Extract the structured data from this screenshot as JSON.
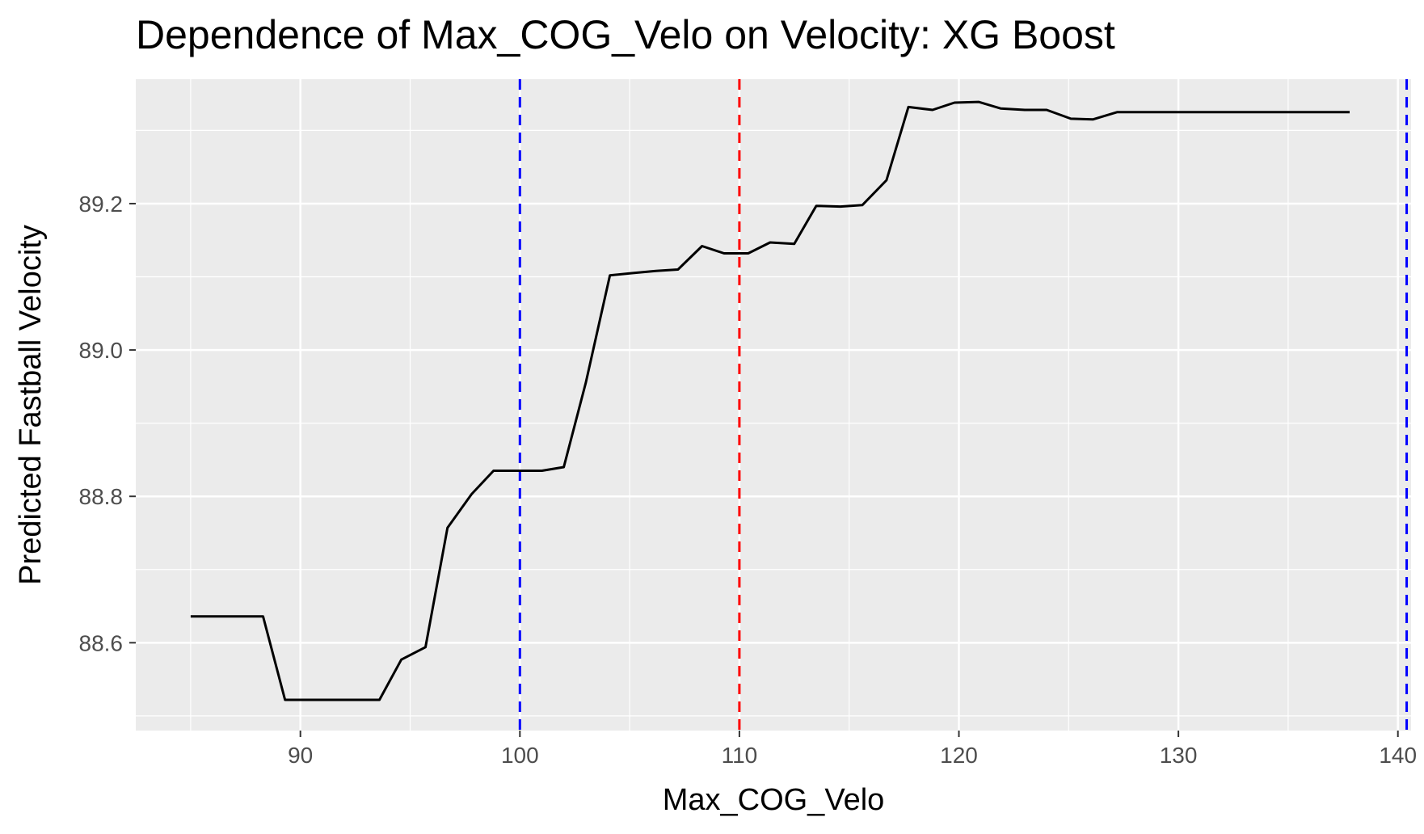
{
  "chart_data": {
    "type": "line",
    "title": "Dependence of Max_COG_Velo on Velocity: XG Boost",
    "xlabel": "Max_COG_Velo",
    "ylabel": "Predicted Fastball Velocity",
    "xlim": [
      82.5,
      140.6
    ],
    "ylim": [
      88.48,
      89.37
    ],
    "x_ticks": [
      90,
      100,
      110,
      120,
      130,
      140
    ],
    "x_tick_labels": [
      "90",
      "100",
      "110",
      "120",
      "130",
      "140"
    ],
    "y_ticks": [
      88.6,
      88.8,
      89.0,
      89.2
    ],
    "y_tick_labels": [
      "88.6",
      "88.8",
      "89.0",
      "89.2"
    ],
    "grid": true,
    "background": "#ebebeb",
    "series": [
      {
        "color": "#000000",
        "x": [
          85.0,
          88.3,
          89.3,
          93.6,
          94.6,
          95.7,
          96.7,
          97.8,
          98.8,
          101.0,
          102.0,
          103.0,
          104.1,
          105.1,
          106.2,
          107.2,
          108.3,
          109.3,
          110.4,
          111.4,
          112.5,
          113.5,
          114.6,
          115.6,
          116.7,
          117.7,
          118.8,
          119.8,
          120.9,
          121.9,
          123.0,
          124.0,
          125.1,
          126.1,
          127.2,
          137.8
        ],
        "y": [
          88.636,
          88.636,
          88.522,
          88.522,
          88.577,
          88.594,
          88.757,
          88.803,
          88.835,
          88.835,
          88.84,
          88.955,
          89.102,
          89.105,
          89.108,
          89.11,
          89.142,
          89.132,
          89.132,
          89.147,
          89.145,
          89.197,
          89.196,
          89.198,
          89.232,
          89.332,
          89.328,
          89.338,
          89.339,
          89.33,
          89.328,
          89.328,
          89.316,
          89.315,
          89.325,
          89.325
        ]
      }
    ],
    "vlines": [
      {
        "x": 100,
        "color": "#0000ff",
        "style": "dashed"
      },
      {
        "x": 110,
        "color": "#ff0000",
        "style": "dashed"
      },
      {
        "x": 140.4,
        "color": "#0000ff",
        "style": "dashed"
      }
    ]
  }
}
